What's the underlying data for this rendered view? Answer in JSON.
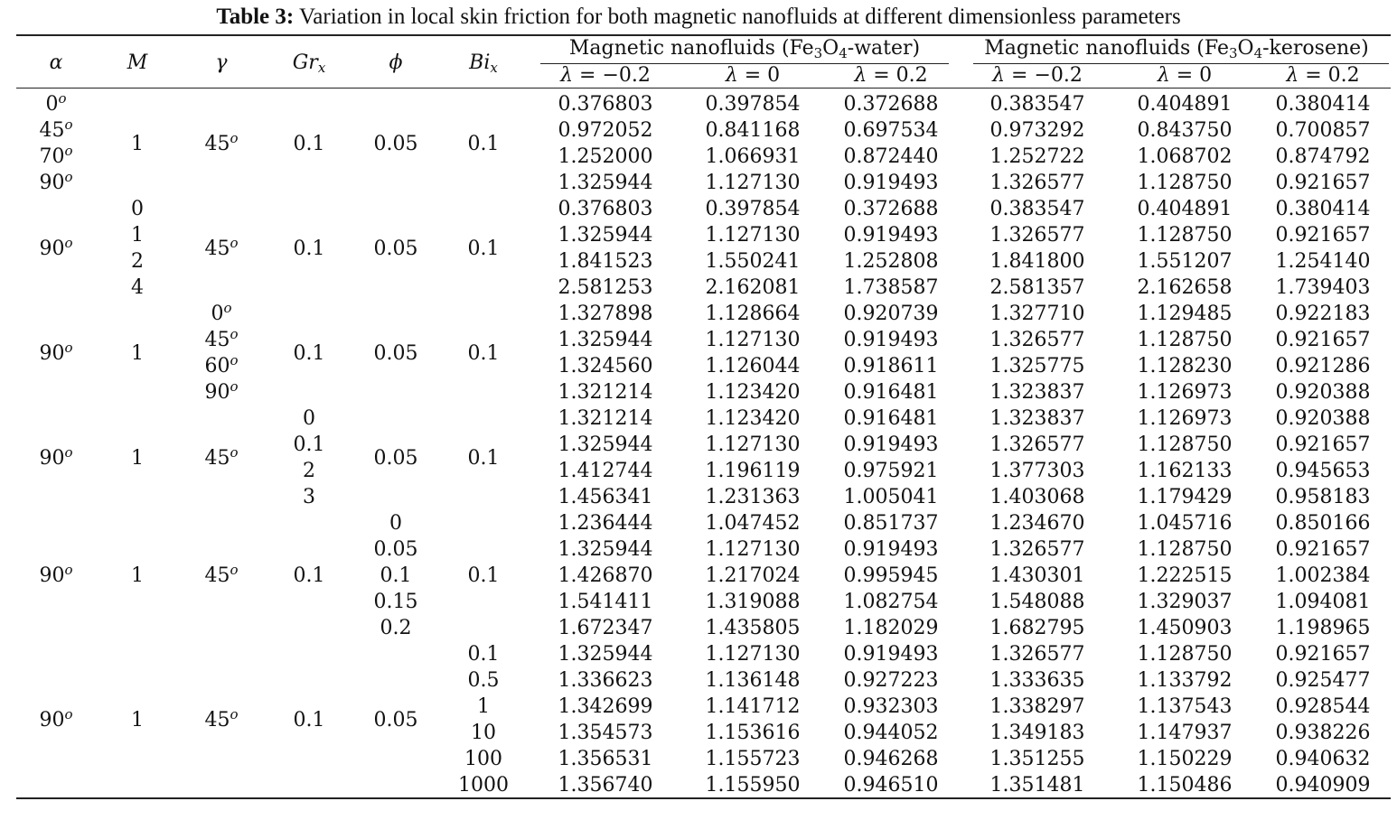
{
  "title": {
    "bold": "Table 3:",
    "rest": " Variation in local skin friction for both magnetic nanofluids at different dimensionless parameters"
  },
  "headers": {
    "alpha": "α",
    "M": "M",
    "gamma": "γ",
    "Gr": "Gr",
    "Gr_sub": "x",
    "phi": "ϕ",
    "Bi": "Bi",
    "Bi_sub": "x",
    "group_water": {
      "pre": "Magnetic nanofluids (Fe",
      "s1": "3",
      "mid": "O",
      "s2": "4",
      "post": "-water)"
    },
    "group_kerosene": {
      "pre": "Magnetic nanofluids (Fe",
      "s1": "3",
      "mid": "O",
      "s2": "4",
      "post": "-kerosene)"
    },
    "lambdas": [
      "λ = −0.2",
      "λ = 0",
      "λ = 0.2",
      "λ = −0.2",
      "λ = 0",
      "λ = 0.2"
    ]
  },
  "rows": [
    [
      "0.376803",
      "0.397854",
      "0.372688",
      "0.383547",
      "0.404891",
      "0.380414"
    ],
    [
      "0.972052",
      "0.841168",
      "0.697534",
      "0.973292",
      "0.843750",
      "0.700857"
    ],
    [
      "1.252000",
      "1.066931",
      "0.872440",
      "1.252722",
      "1.068702",
      "0.874792"
    ],
    [
      "1.325944",
      "1.127130",
      "0.919493",
      "1.326577",
      "1.128750",
      "0.921657"
    ],
    [
      "0.376803",
      "0.397854",
      "0.372688",
      "0.383547",
      "0.404891",
      "0.380414"
    ],
    [
      "1.325944",
      "1.127130",
      "0.919493",
      "1.326577",
      "1.128750",
      "0.921657"
    ],
    [
      "1.841523",
      "1.550241",
      "1.252808",
      "1.841800",
      "1.551207",
      "1.254140"
    ],
    [
      "2.581253",
      "2.162081",
      "1.738587",
      "2.581357",
      "2.162658",
      "1.739403"
    ],
    [
      "1.327898",
      "1.128664",
      "0.920739",
      "1.327710",
      "1.129485",
      "0.922183"
    ],
    [
      "1.325944",
      "1.127130",
      "0.919493",
      "1.326577",
      "1.128750",
      "0.921657"
    ],
    [
      "1.324560",
      "1.126044",
      "0.918611",
      "1.325775",
      "1.128230",
      "0.921286"
    ],
    [
      "1.321214",
      "1.123420",
      "0.916481",
      "1.323837",
      "1.126973",
      "0.920388"
    ],
    [
      "1.321214",
      "1.123420",
      "0.916481",
      "1.323837",
      "1.126973",
      "0.920388"
    ],
    [
      "1.325944",
      "1.127130",
      "0.919493",
      "1.326577",
      "1.128750",
      "0.921657"
    ],
    [
      "1.412744",
      "1.196119",
      "0.975921",
      "1.377303",
      "1.162133",
      "0.945653"
    ],
    [
      "1.456341",
      "1.231363",
      "1.005041",
      "1.403068",
      "1.179429",
      "0.958183"
    ],
    [
      "1.236444",
      "1.047452",
      "0.851737",
      "1.234670",
      "1.045716",
      "0.850166"
    ],
    [
      "1.325944",
      "1.127130",
      "0.919493",
      "1.326577",
      "1.128750",
      "0.921657"
    ],
    [
      "1.426870",
      "1.217024",
      "0.995945",
      "1.430301",
      "1.222515",
      "1.002384"
    ],
    [
      "1.541411",
      "1.319088",
      "1.082754",
      "1.548088",
      "1.329037",
      "1.094081"
    ],
    [
      "1.672347",
      "1.435805",
      "1.182029",
      "1.682795",
      "1.450903",
      "1.198965"
    ],
    [
      "1.325944",
      "1.127130",
      "0.919493",
      "1.326577",
      "1.128750",
      "0.921657"
    ],
    [
      "1.336623",
      "1.136148",
      "0.927223",
      "1.333635",
      "1.133792",
      "0.925477"
    ],
    [
      "1.342699",
      "1.141712",
      "0.932303",
      "1.338297",
      "1.137543",
      "0.928544"
    ],
    [
      "1.354573",
      "1.153616",
      "0.944052",
      "1.349183",
      "1.147937",
      "0.938226"
    ],
    [
      "1.356531",
      "1.155723",
      "0.946268",
      "1.351255",
      "1.150229",
      "0.940632"
    ],
    [
      "1.356740",
      "1.155950",
      "0.946510",
      "1.351481",
      "1.150486",
      "0.940909"
    ]
  ],
  "param_cells": [
    {
      "col": "alpha",
      "row": 0,
      "text": "0",
      "deg": "o"
    },
    {
      "col": "alpha",
      "row": 1,
      "text": "45",
      "deg": "o"
    },
    {
      "col": "alpha",
      "row": 2,
      "text": "70",
      "deg": "o"
    },
    {
      "col": "alpha",
      "row": 3,
      "text": "90",
      "deg": "o"
    },
    {
      "col": "M",
      "row": 1.5,
      "text": "1"
    },
    {
      "col": "gamma",
      "row": 1.5,
      "text": "45",
      "deg": "o"
    },
    {
      "col": "Gr",
      "row": 1.5,
      "text": "0.1"
    },
    {
      "col": "phi",
      "row": 1.5,
      "text": "0.05"
    },
    {
      "col": "Bi",
      "row": 1.5,
      "text": "0.1"
    },
    {
      "col": "M",
      "row": 4,
      "text": "0"
    },
    {
      "col": "M",
      "row": 5,
      "text": "1"
    },
    {
      "col": "M",
      "row": 6,
      "text": "2"
    },
    {
      "col": "M",
      "row": 7,
      "text": "4"
    },
    {
      "col": "alpha",
      "row": 5.5,
      "text": "90",
      "deg": "o"
    },
    {
      "col": "gamma",
      "row": 5.5,
      "text": "45",
      "deg": "o"
    },
    {
      "col": "Gr",
      "row": 5.5,
      "text": "0.1"
    },
    {
      "col": "phi",
      "row": 5.5,
      "text": "0.05"
    },
    {
      "col": "Bi",
      "row": 5.5,
      "text": "0.1"
    },
    {
      "col": "gamma",
      "row": 8,
      "text": "0",
      "deg": "o"
    },
    {
      "col": "gamma",
      "row": 9,
      "text": "45",
      "deg": "o"
    },
    {
      "col": "gamma",
      "row": 10,
      "text": "60",
      "deg": "o"
    },
    {
      "col": "gamma",
      "row": 11,
      "text": "90",
      "deg": "o"
    },
    {
      "col": "alpha",
      "row": 9.5,
      "text": "90",
      "deg": "o"
    },
    {
      "col": "M",
      "row": 9.5,
      "text": "1"
    },
    {
      "col": "Gr",
      "row": 9.5,
      "text": "0.1"
    },
    {
      "col": "phi",
      "row": 9.5,
      "text": "0.05"
    },
    {
      "col": "Bi",
      "row": 9.5,
      "text": "0.1"
    },
    {
      "col": "Gr",
      "row": 12,
      "text": "0"
    },
    {
      "col": "Gr",
      "row": 13,
      "text": "0.1"
    },
    {
      "col": "Gr",
      "row": 14,
      "text": "2"
    },
    {
      "col": "Gr",
      "row": 15,
      "text": "3"
    },
    {
      "col": "alpha",
      "row": 13.5,
      "text": "90",
      "deg": "o"
    },
    {
      "col": "M",
      "row": 13.5,
      "text": "1"
    },
    {
      "col": "gamma",
      "row": 13.5,
      "text": "45",
      "deg": "o"
    },
    {
      "col": "phi",
      "row": 13.5,
      "text": "0.05"
    },
    {
      "col": "Bi",
      "row": 13.5,
      "text": "0.1"
    },
    {
      "col": "phi",
      "row": 16,
      "text": "0"
    },
    {
      "col": "phi",
      "row": 17,
      "text": "0.05"
    },
    {
      "col": "phi",
      "row": 18,
      "text": "0.1"
    },
    {
      "col": "phi",
      "row": 19,
      "text": "0.15"
    },
    {
      "col": "phi",
      "row": 20,
      "text": "0.2"
    },
    {
      "col": "alpha",
      "row": 18,
      "text": "90",
      "deg": "o"
    },
    {
      "col": "M",
      "row": 18,
      "text": "1"
    },
    {
      "col": "gamma",
      "row": 18,
      "text": "45",
      "deg": "o"
    },
    {
      "col": "Gr",
      "row": 18,
      "text": "0.1"
    },
    {
      "col": "Bi",
      "row": 18,
      "text": "0.1"
    },
    {
      "col": "Bi",
      "row": 21,
      "text": "0.1"
    },
    {
      "col": "Bi",
      "row": 22,
      "text": "0.5"
    },
    {
      "col": "Bi",
      "row": 23,
      "text": "1"
    },
    {
      "col": "Bi",
      "row": 24,
      "text": "10"
    },
    {
      "col": "Bi",
      "row": 25,
      "text": "100"
    },
    {
      "col": "Bi",
      "row": 26,
      "text": "1000"
    },
    {
      "col": "alpha",
      "row": 23.5,
      "text": "90",
      "deg": "o"
    },
    {
      "col": "M",
      "row": 23.5,
      "text": "1"
    },
    {
      "col": "gamma",
      "row": 23.5,
      "text": "45",
      "deg": "o"
    },
    {
      "col": "Gr",
      "row": 23.5,
      "text": "0.1"
    },
    {
      "col": "phi",
      "row": 23.5,
      "text": "0.05"
    }
  ]
}
